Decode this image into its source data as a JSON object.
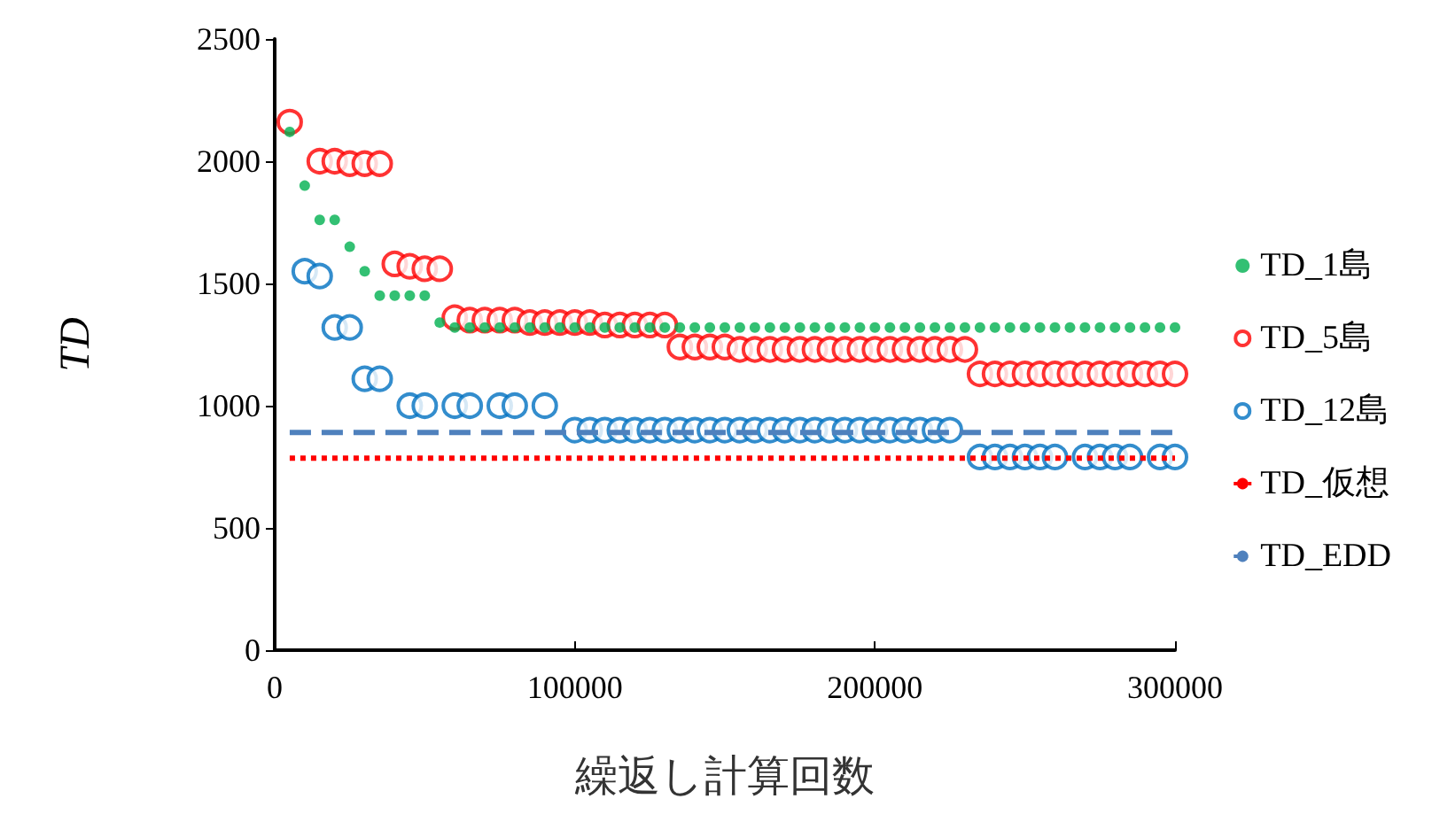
{
  "chart_data": {
    "type": "scatter",
    "xlabel": "繰返し計算回数",
    "ylabel": "TD",
    "xlim": [
      0,
      300000
    ],
    "xticks": [
      0,
      100000,
      200000,
      300000
    ],
    "ylim": [
      0,
      2500
    ],
    "yticks": [
      0,
      500,
      1000,
      1500,
      2000,
      2500
    ],
    "grid": false,
    "legend": "right",
    "series": [
      {
        "name": "TD_1島",
        "marker": "circle",
        "color": "#00b050",
        "x": [
          5000,
          10000,
          15000,
          20000,
          25000,
          30000,
          35000,
          40000,
          45000,
          50000,
          55000,
          60000,
          65000,
          70000,
          75000,
          80000,
          85000,
          90000,
          95000,
          100000,
          105000,
          110000,
          115000,
          120000,
          125000,
          130000,
          135000,
          140000,
          145000,
          150000,
          155000,
          160000,
          165000,
          170000,
          175000,
          180000,
          185000,
          190000,
          195000,
          200000,
          205000,
          210000,
          215000,
          220000,
          225000,
          230000,
          235000,
          240000,
          245000,
          250000,
          255000,
          260000,
          265000,
          270000,
          275000,
          280000,
          285000,
          290000,
          295000,
          300000
        ],
        "values": [
          2120,
          1900,
          1760,
          1760,
          1650,
          1550,
          1450,
          1450,
          1450,
          1450,
          1340,
          1320,
          1320,
          1320,
          1320,
          1320,
          1320,
          1320,
          1320,
          1320,
          1320,
          1320,
          1320,
          1320,
          1320,
          1320,
          1320,
          1320,
          1320,
          1320,
          1320,
          1320,
          1320,
          1320,
          1320,
          1320,
          1320,
          1320,
          1320,
          1320,
          1320,
          1320,
          1320,
          1320,
          1320,
          1320,
          1320,
          1320,
          1320,
          1320,
          1320,
          1320,
          1320,
          1320,
          1320,
          1320,
          1320,
          1320,
          1320,
          1320
        ]
      },
      {
        "name": "TD_5島",
        "marker": "open circle",
        "color": "#ff0000",
        "x": [
          5000,
          15000,
          20000,
          25000,
          30000,
          35000,
          40000,
          45000,
          50000,
          55000,
          60000,
          65000,
          70000,
          75000,
          80000,
          85000,
          90000,
          95000,
          100000,
          105000,
          110000,
          115000,
          120000,
          125000,
          130000,
          135000,
          140000,
          145000,
          150000,
          155000,
          160000,
          165000,
          170000,
          175000,
          180000,
          185000,
          190000,
          195000,
          200000,
          205000,
          210000,
          215000,
          220000,
          225000,
          230000,
          235000,
          240000,
          245000,
          250000,
          255000,
          260000,
          265000,
          270000,
          275000,
          280000,
          285000,
          290000,
          295000,
          300000
        ],
        "values": [
          2160,
          2000,
          2000,
          1990,
          1990,
          1990,
          1580,
          1570,
          1560,
          1560,
          1360,
          1350,
          1350,
          1350,
          1350,
          1340,
          1340,
          1340,
          1340,
          1340,
          1330,
          1330,
          1330,
          1330,
          1330,
          1240,
          1240,
          1240,
          1240,
          1230,
          1230,
          1230,
          1230,
          1230,
          1230,
          1230,
          1230,
          1230,
          1230,
          1230,
          1230,
          1230,
          1230,
          1230,
          1230,
          1130,
          1130,
          1130,
          1130,
          1130,
          1130,
          1130,
          1130,
          1130,
          1130,
          1130,
          1130,
          1130,
          1130
        ]
      },
      {
        "name": "TD_12島",
        "marker": "open circle",
        "color": "#0070c0",
        "x": [
          10000,
          15000,
          20000,
          25000,
          30000,
          35000,
          45000,
          50000,
          60000,
          65000,
          75000,
          80000,
          90000,
          100000,
          105000,
          110000,
          115000,
          120000,
          125000,
          130000,
          135000,
          140000,
          145000,
          150000,
          155000,
          160000,
          165000,
          170000,
          175000,
          180000,
          185000,
          190000,
          195000,
          200000,
          205000,
          210000,
          215000,
          220000,
          225000,
          235000,
          240000,
          245000,
          250000,
          255000,
          260000,
          270000,
          275000,
          280000,
          285000,
          295000,
          300000
        ],
        "values": [
          1550,
          1530,
          1320,
          1320,
          1110,
          1110,
          1000,
          1000,
          1000,
          1000,
          1000,
          1000,
          1000,
          900,
          900,
          900,
          900,
          900,
          900,
          900,
          900,
          900,
          900,
          900,
          900,
          900,
          900,
          900,
          900,
          900,
          900,
          900,
          900,
          900,
          900,
          900,
          900,
          900,
          900,
          790,
          790,
          790,
          790,
          790,
          790,
          790,
          790,
          790,
          790,
          790,
          790
        ]
      },
      {
        "name": "TD_仮想",
        "type": "line",
        "marker": "none",
        "line_style": "dotted",
        "color": "#ff0000",
        "x": [
          5000,
          300000
        ],
        "values": [
          785,
          785
        ]
      },
      {
        "name": "TD_EDD",
        "type": "line",
        "marker": "none",
        "line_style": "dashed",
        "color": "#4f81bd",
        "x": [
          5000,
          300000
        ],
        "values": [
          890,
          890
        ]
      }
    ]
  }
}
